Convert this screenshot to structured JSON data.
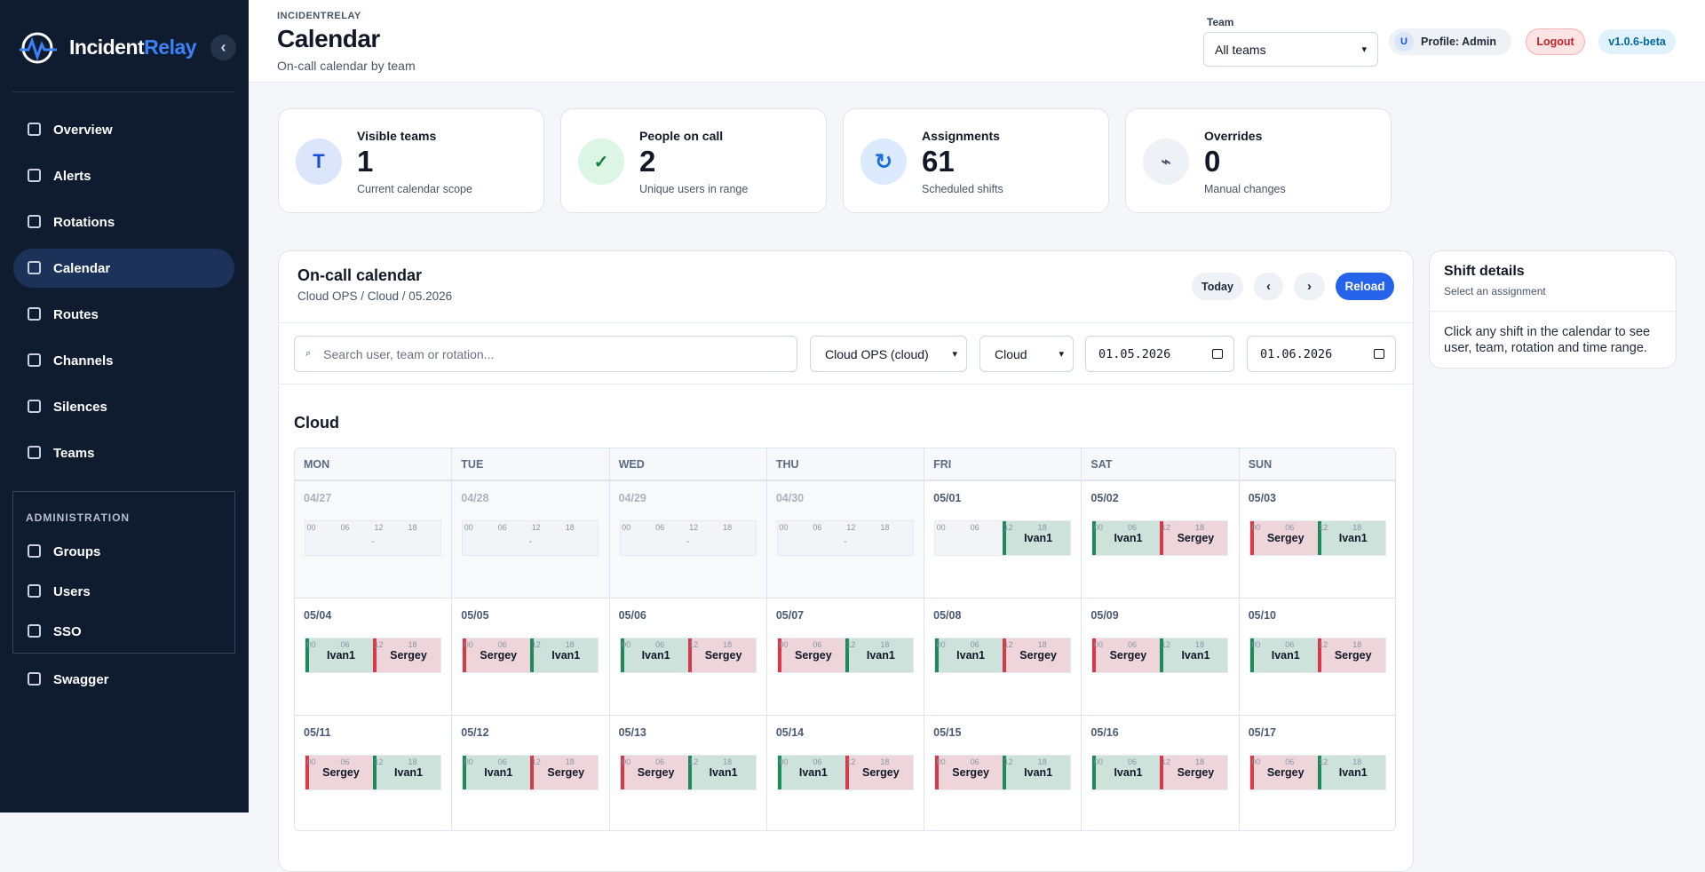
{
  "sidebar": {
    "brand": {
      "first": "Incident",
      "second": "Relay"
    },
    "collapse": "‹",
    "nav": [
      "Overview",
      "Alerts",
      "Rotations",
      "Calendar",
      "Routes",
      "Channels",
      "Silences",
      "Teams"
    ],
    "admin_title": "ADMINISTRATION",
    "admin": [
      "Groups",
      "Users",
      "SSO"
    ],
    "footer": [
      "Swagger"
    ]
  },
  "header": {
    "eyebrow": "INCIDENTRELAY",
    "title": "Calendar",
    "subtitle": "On-call calendar by team",
    "team_label": "Team",
    "team_select": "All teams",
    "avatar": "U",
    "profile": "Profile: Admin",
    "logout": "Logout",
    "version": "v1.0.6-beta"
  },
  "stats": [
    {
      "icon": "T",
      "label": "Visible teams",
      "value": 1,
      "caption": "Current calendar scope"
    },
    {
      "icon": "✓",
      "label": "People on call",
      "value": 2,
      "caption": "Unique users in range"
    },
    {
      "icon": "↻",
      "label": "Assignments",
      "value": 61,
      "caption": "Scheduled shifts"
    },
    {
      "icon": "⌁",
      "label": "Overrides",
      "value": 0,
      "caption": "Manual changes"
    }
  ],
  "calendar": {
    "title": "On-call calendar",
    "subtitle": "Cloud OPS / Cloud / 05.2026",
    "buttons": [
      "Today",
      "‹",
      "›",
      "Reload"
    ],
    "search_icon": "⌕",
    "search_placeholder": "Search user, team or rotation...",
    "filters": [
      "Cloud OPS (cloud)",
      "Cloud"
    ],
    "dates": [
      "01.05.2026",
      "01.06.2026"
    ],
    "section": "Cloud",
    "weekdays": [
      "MON",
      "TUE",
      "WED",
      "THU",
      "FRI",
      "SAT",
      "SUN"
    ],
    "hours": [
      "00",
      "06",
      "12",
      "18"
    ],
    "empty": "-",
    "weeks": [
      [
        {
          "date": "04/27",
          "muted": true,
          "shifts": []
        },
        {
          "date": "04/28",
          "muted": true,
          "shifts": []
        },
        {
          "date": "04/29",
          "muted": true,
          "shifts": []
        },
        {
          "date": "04/30",
          "muted": true,
          "shifts": []
        },
        {
          "date": "05/01",
          "muted": false,
          "shifts": [
            null,
            {
              "user": "Ivan1",
              "color": "#1e8a5a"
            }
          ]
        },
        {
          "date": "05/02",
          "muted": false,
          "shifts": [
            {
              "user": "Ivan1",
              "color": "#1e8a5a"
            },
            {
              "user": "Sergey",
              "color": "#d63a4a"
            }
          ]
        },
        {
          "date": "05/03",
          "muted": false,
          "shifts": [
            {
              "user": "Sergey",
              "color": "#d63a4a"
            },
            {
              "user": "Ivan1",
              "color": "#1e8a5a"
            }
          ]
        }
      ],
      [
        {
          "date": "05/04",
          "muted": false,
          "shifts": [
            {
              "user": "Ivan1",
              "color": "#1e8a5a"
            },
            {
              "user": "Sergey",
              "color": "#d63a4a"
            }
          ]
        },
        {
          "date": "05/05",
          "muted": false,
          "shifts": [
            {
              "user": "Sergey",
              "color": "#d63a4a"
            },
            {
              "user": "Ivan1",
              "color": "#1e8a5a"
            }
          ]
        },
        {
          "date": "05/06",
          "muted": false,
          "shifts": [
            {
              "user": "Ivan1",
              "color": "#1e8a5a"
            },
            {
              "user": "Sergey",
              "color": "#d63a4a"
            }
          ]
        },
        {
          "date": "05/07",
          "muted": false,
          "shifts": [
            {
              "user": "Sergey",
              "color": "#d63a4a"
            },
            {
              "user": "Ivan1",
              "color": "#1e8a5a"
            }
          ]
        },
        {
          "date": "05/08",
          "muted": false,
          "shifts": [
            {
              "user": "Ivan1",
              "color": "#1e8a5a"
            },
            {
              "user": "Sergey",
              "color": "#d63a4a"
            }
          ]
        },
        {
          "date": "05/09",
          "muted": false,
          "shifts": [
            {
              "user": "Sergey",
              "color": "#d63a4a"
            },
            {
              "user": "Ivan1",
              "color": "#1e8a5a"
            }
          ]
        },
        {
          "date": "05/10",
          "muted": false,
          "shifts": [
            {
              "user": "Ivan1",
              "color": "#1e8a5a"
            },
            {
              "user": "Sergey",
              "color": "#d63a4a"
            }
          ]
        }
      ],
      [
        {
          "date": "05/11",
          "muted": false,
          "shifts": [
            {
              "user": "Sergey",
              "color": "#d63a4a"
            },
            {
              "user": "Ivan1",
              "color": "#1e8a5a"
            }
          ]
        },
        {
          "date": "05/12",
          "muted": false,
          "shifts": [
            {
              "user": "Ivan1",
              "color": "#1e8a5a"
            },
            {
              "user": "Sergey",
              "color": "#d63a4a"
            }
          ]
        },
        {
          "date": "05/13",
          "muted": false,
          "shifts": [
            {
              "user": "Sergey",
              "color": "#d63a4a"
            },
            {
              "user": "Ivan1",
              "color": "#1e8a5a"
            }
          ]
        },
        {
          "date": "05/14",
          "muted": false,
          "shifts": [
            {
              "user": "Ivan1",
              "color": "#1e8a5a"
            },
            {
              "user": "Sergey",
              "color": "#d63a4a"
            }
          ]
        },
        {
          "date": "05/15",
          "muted": false,
          "shifts": [
            {
              "user": "Sergey",
              "color": "#d63a4a"
            },
            {
              "user": "Ivan1",
              "color": "#1e8a5a"
            }
          ]
        },
        {
          "date": "05/16",
          "muted": false,
          "shifts": [
            {
              "user": "Ivan1",
              "color": "#1e8a5a"
            },
            {
              "user": "Sergey",
              "color": "#d63a4a"
            }
          ]
        },
        {
          "date": "05/17",
          "muted": false,
          "shifts": [
            {
              "user": "Sergey",
              "color": "#d63a4a"
            },
            {
              "user": "Ivan1",
              "color": "#1e8a5a"
            }
          ]
        }
      ]
    ]
  },
  "details": {
    "title": "Shift details",
    "subtitle": "Select an assignment",
    "body": "Click any shift in the calendar to see user, team, rotation and time range."
  }
}
